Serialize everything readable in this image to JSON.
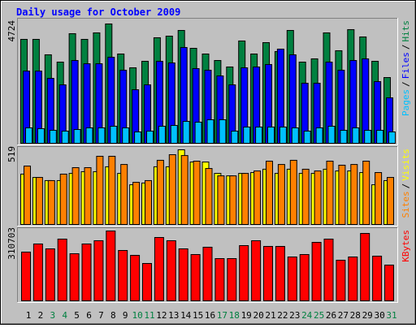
{
  "title": "Daily usage for October 2009",
  "legend_separator": "/",
  "chart_data": [
    {
      "type": "bar",
      "ylim": [
        0,
        4724
      ],
      "yticks": [
        4724
      ],
      "series": [
        {
          "name": "Hits",
          "color": "#008040",
          "values": [
            4114,
            4114,
            3503,
            3214,
            4339,
            4114,
            4371,
            4724,
            3535,
            2989,
            3246,
            4178,
            4242,
            4467,
            3760,
            3535,
            3278,
            3021,
            4050,
            3535,
            3985,
            3632,
            4467,
            3214,
            3343,
            4371,
            3664,
            4500,
            4210,
            3246,
            2603
          ]
        },
        {
          "name": "Files",
          "color": "#0000ff",
          "values": [
            2860,
            2860,
            2571,
            2314,
            3278,
            3150,
            3150,
            3407,
            2893,
            2121,
            2314,
            3246,
            3182,
            3793,
            2957,
            2893,
            2668,
            2314,
            2989,
            3021,
            3118,
            3728,
            3503,
            2378,
            2378,
            3214,
            2893,
            3278,
            3343,
            2443,
            1800
          ]
        },
        {
          "name": "Pages",
          "color": "#00c0ff",
          "values": [
            611,
            579,
            514,
            482,
            546,
            611,
            611,
            675,
            611,
            450,
            482,
            675,
            707,
            868,
            836,
            932,
            932,
            482,
            643,
            643,
            643,
            643,
            611,
            482,
            611,
            675,
            514,
            611,
            514,
            514,
            450
          ]
        }
      ]
    },
    {
      "type": "bar",
      "ylim": [
        0,
        519
      ],
      "yticks": [
        519
      ],
      "series": [
        {
          "name": "Visits",
          "color": "#ffff00",
          "values": [
            350,
            327,
            305,
            305,
            355,
            367,
            367,
            401,
            355,
            276,
            288,
            401,
            401,
            519,
            434,
            434,
            355,
            338,
            355,
            361,
            384,
            355,
            384,
            355,
            355,
            384,
            372,
            372,
            361,
            276,
            305
          ]
        },
        {
          "name": "Sites",
          "color": "#ff8000",
          "values": [
            406,
            327,
            305,
            350,
            395,
            395,
            474,
            474,
            417,
            293,
            305,
            446,
            485,
            479,
            440,
            389,
            338,
            338,
            355,
            372,
            440,
            417,
            446,
            384,
            372,
            440,
            412,
            417,
            440,
            361,
            327
          ]
        }
      ]
    },
    {
      "type": "bar",
      "ylim": [
        0,
        310703
      ],
      "yticks": [
        310703
      ],
      "categories": [
        "1",
        "2",
        "3",
        "4",
        "5",
        "6",
        "7",
        "8",
        "9",
        "10",
        "11",
        "12",
        "13",
        "14",
        "15",
        "16",
        "17",
        "18",
        "19",
        "20",
        "21",
        "22",
        "23",
        "24",
        "25",
        "26",
        "27",
        "28",
        "29",
        "30",
        "31"
      ],
      "category_colors": [
        "#000000",
        "#000000",
        "#008040",
        "#008040",
        "#000000",
        "#000000",
        "#000000",
        "#000000",
        "#000000",
        "#008040",
        "#008040",
        "#000000",
        "#000000",
        "#000000",
        "#000000",
        "#000000",
        "#008040",
        "#008040",
        "#000000",
        "#000000",
        "#000000",
        "#000000",
        "#000000",
        "#008040",
        "#008040",
        "#000000",
        "#000000",
        "#000000",
        "#000000",
        "#000000",
        "#008040"
      ],
      "series": [
        {
          "name": "KBytes",
          "color": "#ff0000",
          "values": [
            216768,
            252896,
            231219,
            274573,
            209542,
            252896,
            267347,
            310703,
            223994,
            202317,
            166189,
            281798,
            267347,
            231219,
            205930,
            238445,
            187866,
            187866,
            245670,
            267347,
            242058,
            242058,
            195091,
            205930,
            260122,
            274573,
            180640,
            195091,
            299862,
            198704,
            158963
          ]
        }
      ]
    }
  ]
}
